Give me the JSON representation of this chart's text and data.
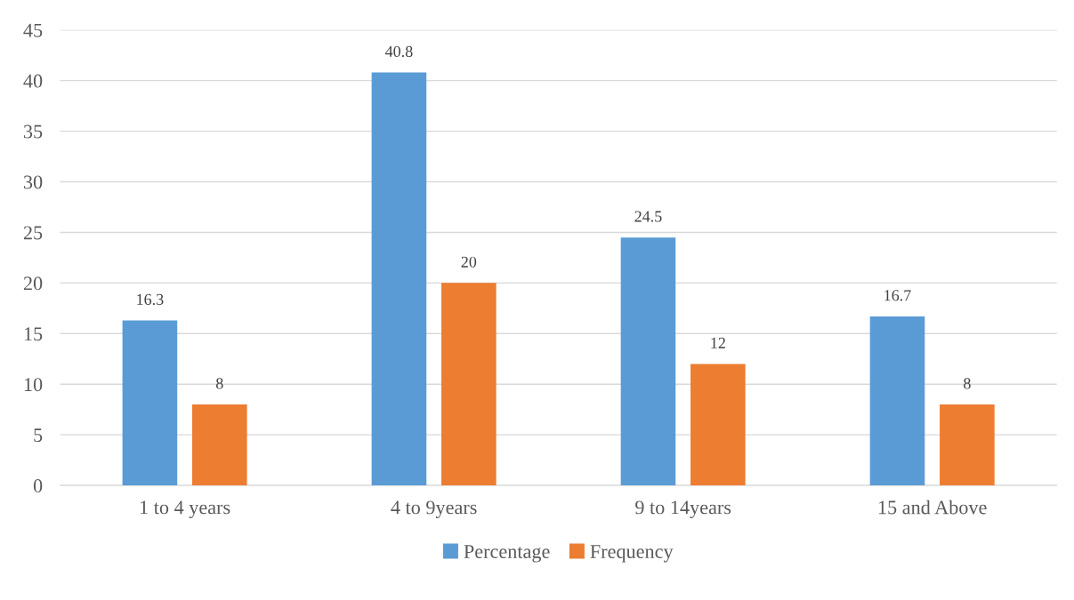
{
  "chart_data": {
    "type": "bar",
    "categories": [
      "1 to 4 years",
      "4 to 9years",
      "9 to 14years",
      "15 and Above"
    ],
    "series": [
      {
        "name": "Percentage",
        "color": "#5b9bd5",
        "values": [
          16.3,
          40.8,
          24.5,
          16.7
        ]
      },
      {
        "name": "Frequency",
        "color": "#ed7d31",
        "values": [
          8,
          20,
          12,
          8
        ]
      }
    ],
    "ylim": [
      0,
      45
    ],
    "yticks": [
      0,
      5,
      10,
      15,
      20,
      25,
      30,
      35,
      40,
      45
    ],
    "grid": "y",
    "legend": "bottom",
    "data_labels": true
  }
}
